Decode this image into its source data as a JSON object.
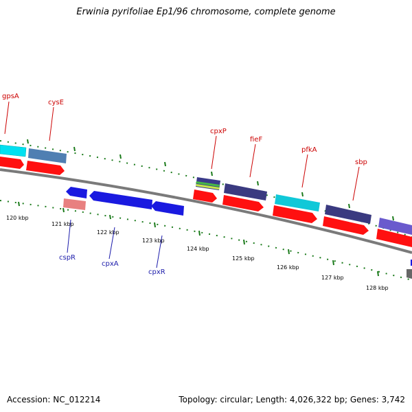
{
  "title": "Erwinia pyrifoliae Ep1/96 chromosome, complete genome",
  "footer": {
    "accession": "Accession: NC_012214",
    "stats": "Topology: circular; Length: 4,026,322 bp; Genes: 3,742"
  },
  "colors": {
    "backbone": "#7a7a7a",
    "tick": "#1a7a1a",
    "forward_label": "#cc0000",
    "reverse_label": "#1a1aaa",
    "cds": "#ff1010"
  },
  "kbp_labels": [
    "120 kbp",
    "121 kbp",
    "122 kbp",
    "123 kbp",
    "124 kbp",
    "125 kbp",
    "126 kbp",
    "127 kbp",
    "128 kbp"
  ],
  "forward_genes": [
    {
      "name": "gpsA",
      "color": "#00e0f0"
    },
    {
      "name": "cysE",
      "color": "#4f7fb2"
    },
    {
      "name": "cpxP",
      "color": "#3a3a8a"
    },
    {
      "name": "fieF",
      "color": "#3a3a80"
    },
    {
      "name": "pfkA",
      "color": "#10c8d8"
    },
    {
      "name": "sbp",
      "color": "#3a3a80"
    },
    {
      "name": "",
      "color": "#6a5acd"
    }
  ],
  "reverse_genes": [
    {
      "name": "cspR",
      "color": "#e88080"
    },
    {
      "name": "cpxA",
      "color": "#1a1ae0"
    },
    {
      "name": "cpxR",
      "color": "#1a1ae0"
    }
  ]
}
